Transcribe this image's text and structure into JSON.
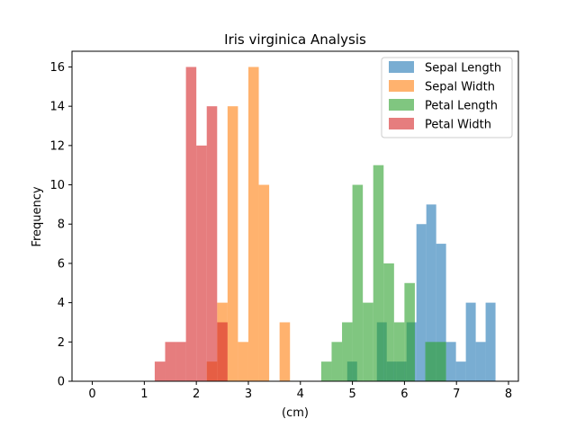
{
  "chart_data": {
    "type": "histogram",
    "title": "Iris virginica Analysis",
    "xlabel": "(cm)",
    "ylabel": "Frequency",
    "xlim": [
      -0.39,
      8.19
    ],
    "ylim": [
      0,
      16.8
    ],
    "xticks": [
      "0",
      "1",
      "2",
      "3",
      "4",
      "5",
      "6",
      "7",
      "8"
    ],
    "yticks": [
      "0",
      "2",
      "4",
      "6",
      "8",
      "10",
      "12",
      "14",
      "16"
    ],
    "legend_position": "top-right",
    "grid": false,
    "series": [
      {
        "name": "Sepal Length",
        "color": "#1f77b4",
        "opacity": 0.6,
        "bin_edges": [
          4.9,
          5.09,
          5.28,
          5.47,
          5.66,
          5.85,
          6.04,
          6.23,
          6.42,
          6.61,
          6.8,
          6.99,
          7.18,
          7.37,
          7.56,
          7.75
        ],
        "counts": [
          1,
          0,
          0,
          3,
          1,
          1,
          3,
          8,
          9,
          7,
          2,
          1,
          4,
          2,
          4
        ]
      },
      {
        "name": "Sepal Width",
        "color": "#ff7f0e",
        "opacity": 0.6,
        "bin_edges": [
          2.2,
          2.4,
          2.6,
          2.8,
          3.0,
          3.2,
          3.4,
          3.6,
          3.8
        ],
        "counts": [
          1,
          4,
          14,
          2,
          16,
          10,
          0,
          3
        ]
      },
      {
        "name": "Petal Length",
        "color": "#2ca02c",
        "opacity": 0.6,
        "bin_edges": [
          4.4,
          4.6,
          4.8,
          5.0,
          5.2,
          5.4,
          5.6,
          5.8,
          6.0,
          6.2,
          6.4,
          6.6,
          6.8
        ],
        "counts": [
          1,
          2,
          3,
          10,
          4,
          11,
          6,
          3,
          5,
          0,
          2,
          2
        ]
      },
      {
        "name": "Petal Width",
        "color": "#d62728",
        "opacity": 0.6,
        "bin_edges": [
          1.2,
          1.4,
          1.6,
          1.8,
          2.0,
          2.2,
          2.4,
          2.6
        ],
        "counts": [
          1,
          2,
          2,
          16,
          12,
          14,
          3
        ]
      }
    ]
  }
}
